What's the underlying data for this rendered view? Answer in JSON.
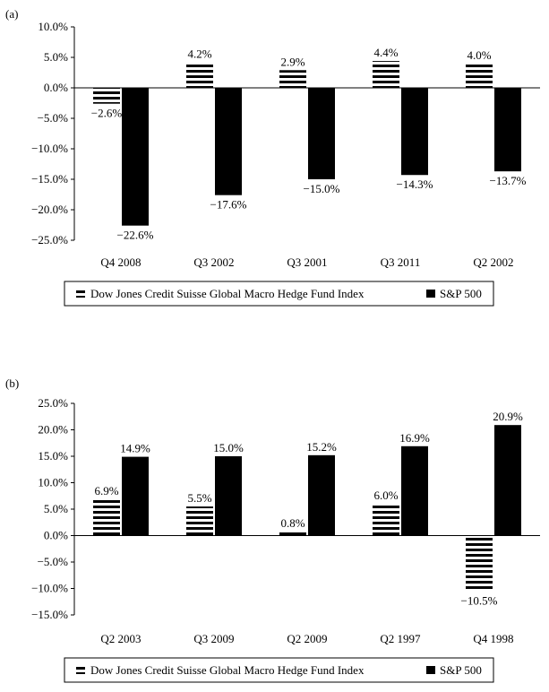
{
  "chart_data": [
    {
      "type": "bar",
      "panel_label": "(a)",
      "categories": [
        "Q4 2008",
        "Q3 2002",
        "Q3 2001",
        "Q3 2011",
        "Q2 2002"
      ],
      "series": [
        {
          "name": "Dow Jones Credit Suisse Global Macro Hedge Fund Index",
          "values": [
            -2.6,
            4.2,
            2.9,
            4.4,
            4.0
          ],
          "labels": [
            "−2.6%",
            "4.2%",
            "2.9%",
            "4.4%",
            "4.0%"
          ]
        },
        {
          "name": "S&P 500",
          "values": [
            -22.6,
            -17.6,
            -15.0,
            -14.3,
            -13.7
          ],
          "labels": [
            "−22.6%",
            "−17.6%",
            "−15.0%",
            "−14.3%",
            "−13.7%"
          ]
        }
      ],
      "yticks": [
        10.0,
        5.0,
        0.0,
        -5.0,
        -10.0,
        -15.0,
        -20.0,
        -25.0
      ],
      "ytick_labels": [
        "10.0%",
        "5.0%",
        "0.0%",
        "−5.0%",
        "−10.0%",
        "−15.0%",
        "−20.0%",
        "−25.0%"
      ],
      "ylim": [
        -25,
        10
      ],
      "grid": false,
      "legend_position": "bottom"
    },
    {
      "type": "bar",
      "panel_label": "(b)",
      "categories": [
        "Q2 2003",
        "Q3 2009",
        "Q2 2009",
        "Q2 1997",
        "Q4 1998"
      ],
      "series": [
        {
          "name": "Dow Jones Credit Suisse Global Macro Hedge Fund Index",
          "values": [
            6.9,
            5.5,
            0.8,
            6.0,
            -10.5
          ],
          "labels": [
            "6.9%",
            "5.5%",
            "0.8%",
            "6.0%",
            "−10.5%"
          ]
        },
        {
          "name": "S&P 500",
          "values": [
            14.9,
            15.0,
            15.2,
            16.9,
            20.9
          ],
          "labels": [
            "14.9%",
            "15.0%",
            "15.2%",
            "16.9%",
            "20.9%"
          ]
        }
      ],
      "yticks": [
        25.0,
        20.0,
        15.0,
        10.0,
        5.0,
        0.0,
        -5.0,
        -10.0,
        -15.0
      ],
      "ytick_labels": [
        "25.0%",
        "20.0%",
        "15.0%",
        "10.0%",
        "5.0%",
        "0.0%",
        "−5.0%",
        "−10.0%",
        "−15.0%"
      ],
      "ylim": [
        -15,
        25
      ],
      "grid": false,
      "legend_position": "bottom"
    }
  ]
}
